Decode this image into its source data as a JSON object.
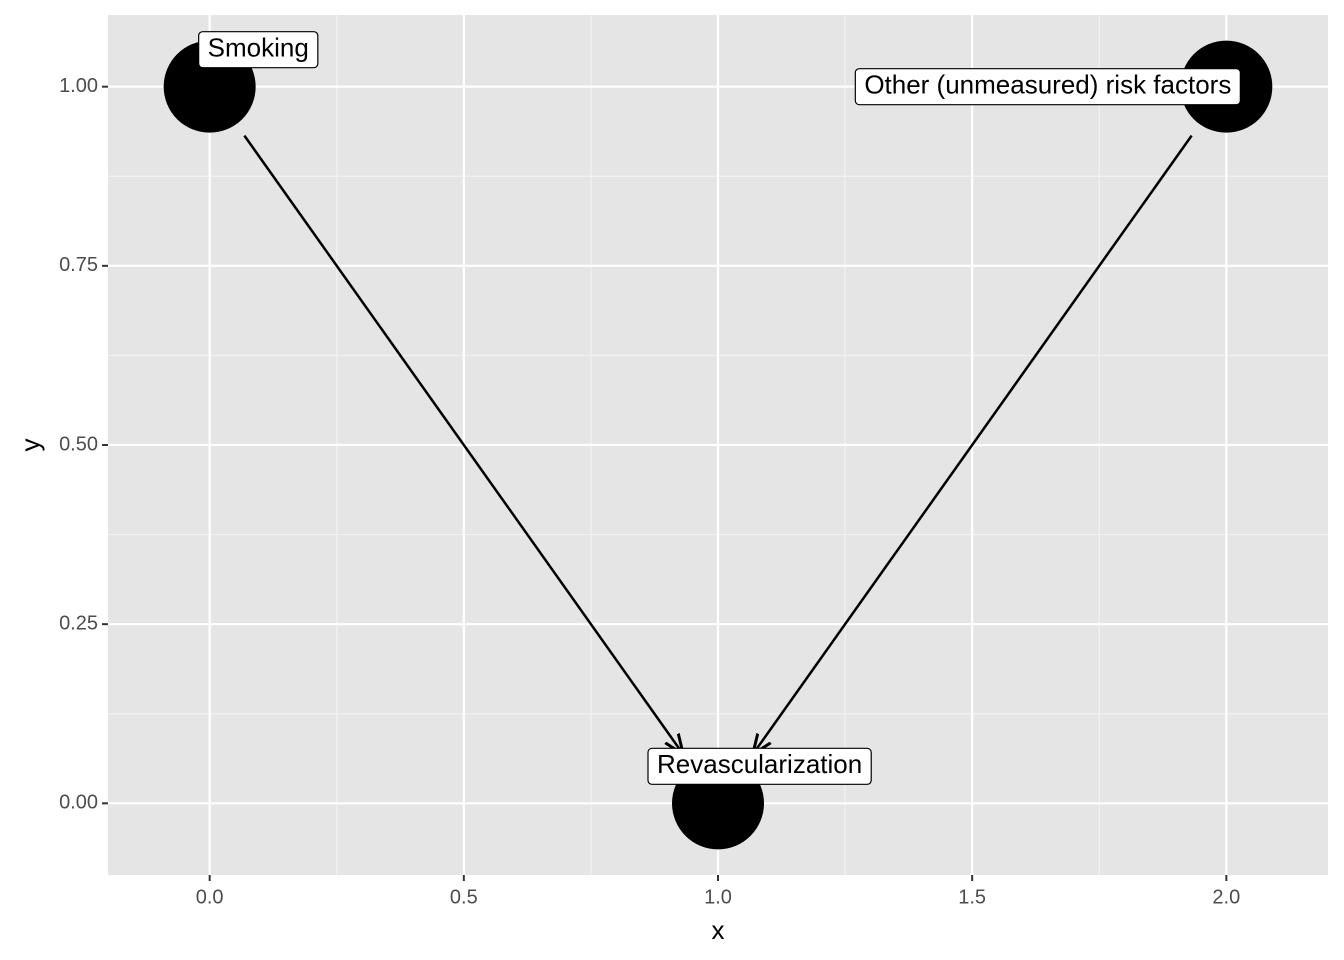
{
  "chart_data": {
    "type": "dag",
    "x": [
      0,
      2,
      1
    ],
    "values": [
      1,
      1,
      0
    ],
    "labels": [
      "Smoking",
      "Other (unmeasured) risk factors",
      "Revascularization"
    ],
    "edges": [
      {
        "from": "Smoking",
        "to": "Revascularization"
      },
      {
        "from": "Other (unmeasured) risk factors",
        "to": "Revascularization"
      }
    ],
    "color": "#000000",
    "xlabel": "x",
    "ylabel": "y",
    "xlim": [
      -0.2,
      2.2
    ],
    "ylim": [
      -0.1,
      1.1
    ],
    "xticks": [
      {
        "value": 0,
        "label": "0.0"
      },
      0.5,
      {
        "value": 1,
        "label": "1.0"
      },
      1.5,
      {
        "value": 2,
        "label": "2.0"
      }
    ],
    "yticks": [
      {
        "value": 0,
        "label": "0.00"
      },
      {
        "value": 0.25,
        "label": "0.25"
      },
      {
        "value": 0.5,
        "label": "0.50"
      },
      {
        "value": 0.75,
        "label": "0.75"
      },
      {
        "value": 1,
        "label": "1.00"
      }
    ],
    "grid": true
  }
}
